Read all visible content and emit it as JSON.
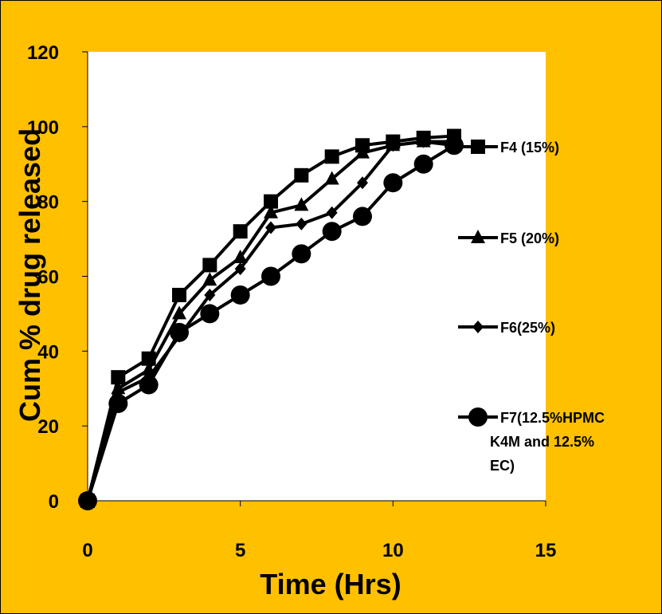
{
  "chart_data": {
    "type": "line",
    "xlabel": "Time (Hrs)",
    "ylabel": "Cum % drug released",
    "xlim": [
      0,
      15
    ],
    "ylim": [
      0,
      120
    ],
    "x_ticks": [
      0,
      5,
      10,
      15
    ],
    "y_ticks": [
      0,
      20,
      40,
      60,
      80,
      100,
      120
    ],
    "x": [
      0,
      1,
      2,
      3,
      4,
      5,
      6,
      7,
      8,
      9,
      10,
      11,
      12
    ],
    "grid": false,
    "legend_position": "right",
    "series": [
      {
        "name": "F4 (15%)",
        "marker": "square",
        "values": [
          0,
          33,
          38,
          55,
          63,
          72,
          80,
          87,
          92,
          95,
          96,
          97,
          97.5
        ]
      },
      {
        "name": "F5 (20%)",
        "marker": "triangle",
        "values": [
          0,
          30,
          35,
          50,
          59,
          65,
          77,
          79,
          86,
          93,
          95,
          96,
          96
        ]
      },
      {
        "name": "F6(25%)",
        "marker": "diamond",
        "values": [
          0,
          29,
          33,
          44,
          55,
          62,
          73,
          74,
          77,
          85,
          95,
          96,
          95
        ]
      },
      {
        "name": "F7(12.5%HPMC K4M and 12.5% EC)",
        "marker": "circle",
        "values": [
          0,
          26,
          31,
          45,
          50,
          55,
          60,
          66,
          72,
          76,
          85,
          90,
          95
        ]
      }
    ],
    "colors": {
      "background": "#FFC000",
      "plot_area": "#FFFFFF",
      "lines": "#000000"
    }
  }
}
